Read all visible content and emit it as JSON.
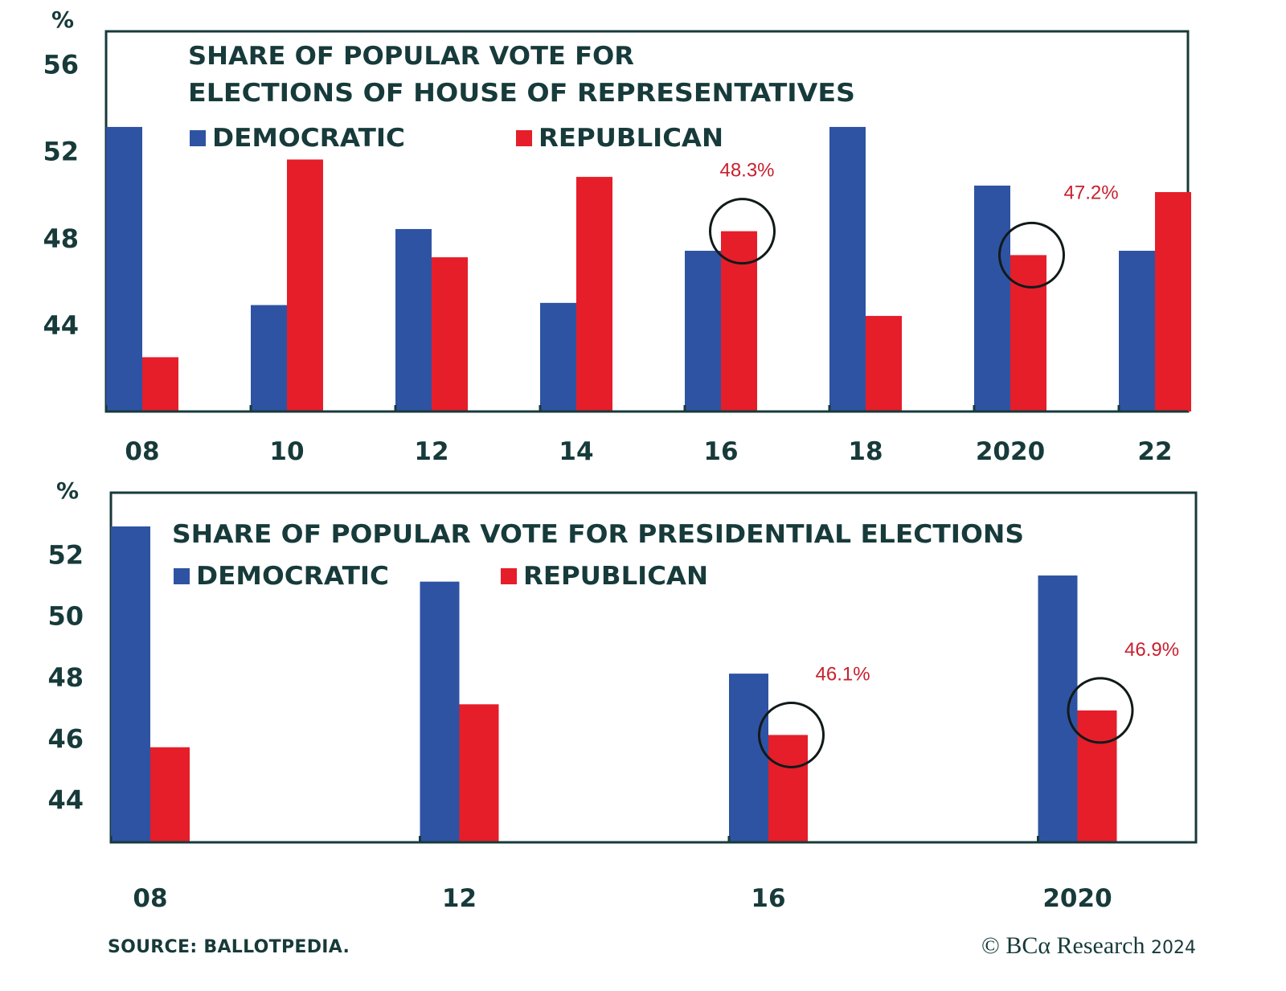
{
  "colors": {
    "democratic": "#2f53a3",
    "republican": "#e51e2a",
    "text": "#173a3a",
    "annotation": "#c8202f",
    "frame": "#173a3a"
  },
  "chart_data": [
    {
      "type": "bar",
      "title": "SHARE OF POPULAR VOTE FOR ELECTIONS OF HOUSE OF REPRESENTATIVES",
      "title_lines": [
        "SHARE OF POPULAR VOTE FOR",
        "ELECTIONS OF HOUSE OF REPRESENTATIVES"
      ],
      "ylabel": "%",
      "xlabel": "",
      "categories": [
        "08",
        "10",
        "12",
        "14",
        "16",
        "18",
        "2020",
        "22"
      ],
      "series": [
        {
          "name": "DEMOCRATIC",
          "values": [
            53.1,
            44.9,
            48.4,
            45.0,
            47.4,
            53.1,
            50.4,
            47.4
          ]
        },
        {
          "name": "REPUBLICAN",
          "values": [
            42.5,
            51.6,
            47.1,
            50.8,
            48.3,
            44.4,
            47.2,
            50.1
          ]
        }
      ],
      "yticks": [
        44,
        48,
        52,
        56
      ],
      "ylim": [
        40,
        57.5
      ],
      "grid": false,
      "legend": "top-left",
      "annotations": [
        {
          "category": "16",
          "series": "REPUBLICAN",
          "text": "48.3%",
          "circled": true
        },
        {
          "category": "2020",
          "series": "REPUBLICAN",
          "text": "47.2%",
          "circled": true
        }
      ]
    },
    {
      "type": "bar",
      "title": "SHARE OF POPULAR VOTE  FOR PRESIDENTIAL ELECTIONS",
      "title_lines": [
        "SHARE OF POPULAR VOTE  FOR PRESIDENTIAL ELECTIONS"
      ],
      "ylabel": "%",
      "xlabel": "",
      "categories": [
        "08",
        "12",
        "16",
        "2020"
      ],
      "series": [
        {
          "name": "DEMOCRATIC",
          "values": [
            52.9,
            51.1,
            48.1,
            51.3
          ]
        },
        {
          "name": "REPUBLICAN",
          "values": [
            45.7,
            47.1,
            46.1,
            46.9
          ]
        }
      ],
      "yticks": [
        44,
        46,
        48,
        50,
        52
      ],
      "ylim": [
        42.6,
        54
      ],
      "grid": false,
      "legend": "top-left",
      "annotations": [
        {
          "category": "16",
          "series": "REPUBLICAN",
          "text": "46.1%",
          "circled": true
        },
        {
          "category": "2020",
          "series": "REPUBLICAN",
          "text": "46.9%",
          "circled": true
        }
      ]
    }
  ],
  "footer": {
    "source": "SOURCE: BALLOTPEDIA.",
    "copyright_symbol": "©",
    "brand": "BCα Research",
    "year": "2024"
  }
}
